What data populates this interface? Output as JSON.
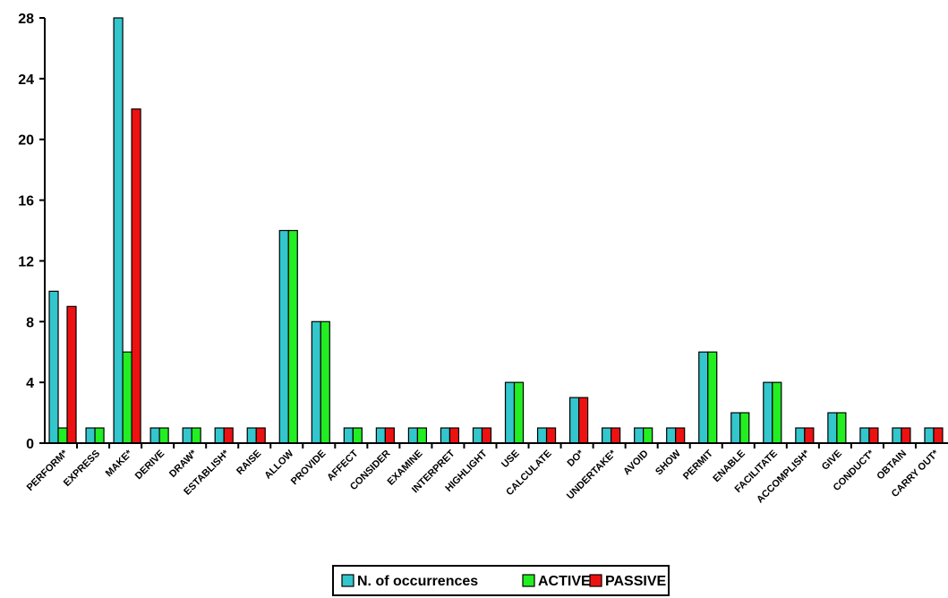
{
  "chart_data": {
    "type": "bar",
    "title": "",
    "xlabel": "",
    "ylabel": "",
    "ylim": [
      0,
      28
    ],
    "yticks": [
      0,
      4,
      8,
      12,
      16,
      20,
      24,
      28
    ],
    "grid": false,
    "legend_position": "bottom-center",
    "categories": [
      "PERFORM*",
      "EXPRESS",
      "MAKE*",
      "DERIVE",
      "DRAW*",
      "ESTABLISH*",
      "RAISE",
      "ALLOW",
      "PROVIDE",
      "AFFECT",
      "CONSIDER",
      "EXAMINE",
      "INTERPRET",
      "HIGHLIGHT",
      "USE",
      "CALCULATE",
      "DO*",
      "UNDERTAKE*",
      "AVOID",
      "SHOW",
      "PERMIT",
      "ENABLE",
      "FACILITATE",
      "ACCOMPLISH*",
      "GIVE",
      "CONDUCT*",
      "OBTAIN",
      "CARRY OUT*"
    ],
    "series": [
      {
        "name": "N. of occurrences",
        "color": "#33C6CC",
        "values": [
          10,
          1,
          28,
          1,
          1,
          1,
          1,
          14,
          8,
          1,
          1,
          1,
          1,
          1,
          4,
          1,
          3,
          1,
          1,
          1,
          6,
          2,
          4,
          1,
          2,
          1,
          1,
          1
        ]
      },
      {
        "name": "ACTIVE",
        "color": "#22EE22",
        "values": [
          1,
          1,
          6,
          1,
          1,
          0,
          0,
          14,
          8,
          1,
          0,
          1,
          0,
          0,
          4,
          0,
          0,
          0,
          1,
          0,
          6,
          2,
          4,
          0,
          2,
          0,
          0,
          0
        ]
      },
      {
        "name": "PASSIVE",
        "color": "#EE1111",
        "values": [
          9,
          0,
          22,
          0,
          0,
          1,
          1,
          0,
          0,
          0,
          1,
          0,
          1,
          1,
          0,
          1,
          3,
          1,
          0,
          1,
          0,
          0,
          0,
          1,
          0,
          1,
          1,
          1
        ]
      }
    ]
  }
}
